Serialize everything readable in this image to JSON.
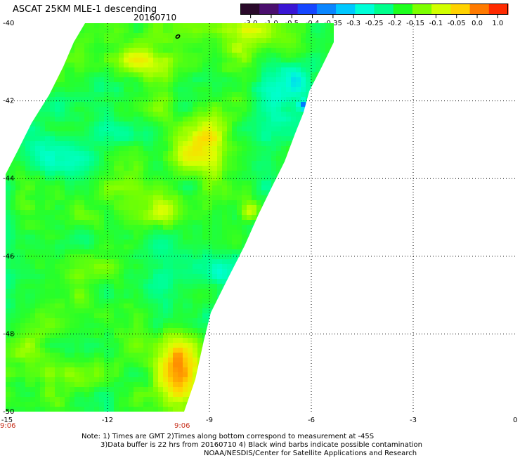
{
  "header": {
    "title": "ASCAT 25KM MLE-1 descending",
    "date": "20160710"
  },
  "colorbar": {
    "labels": [
      "-3.0",
      "-1.0",
      "-0.5",
      "-0.4",
      "-0.35",
      "-0.3",
      "-0.25",
      "-0.2",
      "-0.15",
      "-0.1",
      "-0.05",
      "0.0",
      "1.0"
    ],
    "colors": [
      "#2a0a2a",
      "#4b0f6e",
      "#3a16d4",
      "#1646ff",
      "#0a86ff",
      "#00c8ff",
      "#00ffd8",
      "#00ff8c",
      "#1eff1e",
      "#7dff00",
      "#d2ff00",
      "#ffd200",
      "#ff7a00",
      "#ff2a00"
    ]
  },
  "map": {
    "x_ticks": [
      "-15",
      "-12",
      "-9",
      "-6",
      "-3",
      "0"
    ],
    "y_ticks": [
      "-40",
      "-42",
      "-44",
      "-46",
      "-48",
      "-50"
    ],
    "time_labels": [
      "9:06",
      "9:06"
    ],
    "contour_label": "0"
  },
  "notes": {
    "line1": "Note: 1) Times are GMT 2)Times along bottom correspond to measurement at -45S",
    "line2": "3)Data buffer is 22 hrs from 20160710 4) Black wind barbs indicate possible contamination",
    "line3": "NOAA/NESDIS/Center for Satellite Applications and Research"
  }
}
